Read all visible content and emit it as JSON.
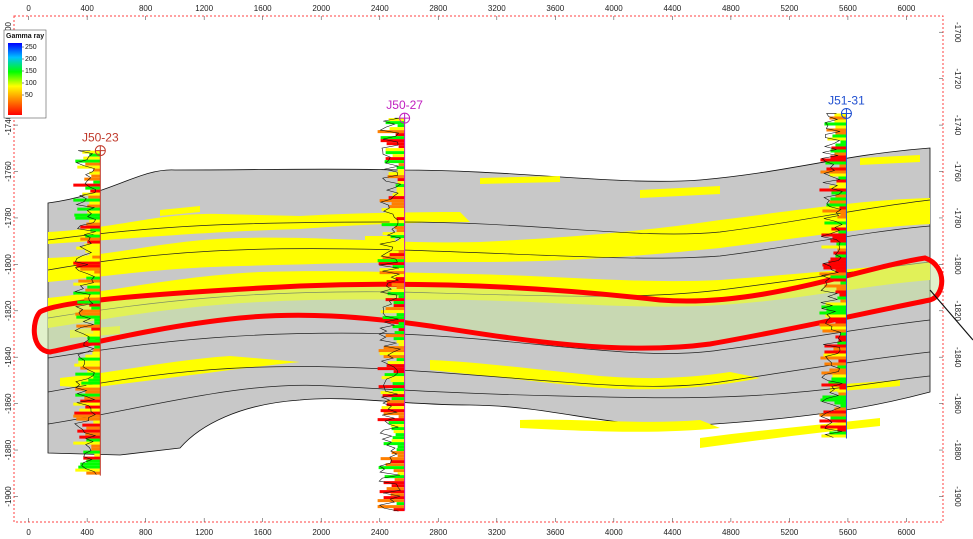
{
  "x_axis": {
    "ticks": [
      "0",
      "400",
      "800",
      "1200",
      "1600",
      "2000",
      "2400",
      "2800",
      "3200",
      "3600",
      "4000",
      "4400",
      "4800",
      "5200",
      "5600",
      "6000"
    ],
    "range": [
      -100,
      6250
    ]
  },
  "y_axis": {
    "ticks": [
      "-1700",
      "-1720",
      "-1740",
      "-1760",
      "-1780",
      "-1800",
      "-1820",
      "-1840",
      "-1860",
      "-1880",
      "-1900"
    ],
    "range": [
      -1693,
      -1911
    ]
  },
  "legend": {
    "title": "Gamma ray",
    "labels": [
      "250",
      "200",
      "150",
      "100",
      "50"
    ],
    "colors": [
      "#0000ff",
      "#00c0ff",
      "#00ff00",
      "#ffff00",
      "#ff8000",
      "#ff0000"
    ]
  },
  "wells": [
    {
      "name": "J50-23",
      "x": 490,
      "top": -1751,
      "bottom": -1891,
      "color": "#c0392b"
    },
    {
      "name": "J50-27",
      "x": 2570,
      "top": -1737,
      "bottom": -1906,
      "color": "#c020c0"
    },
    {
      "name": "J51-31",
      "x": 5590,
      "top": -1735,
      "bottom": -1875,
      "color": "#1f4fd0"
    }
  ],
  "colors": {
    "background": "#c8c8c8",
    "sand": "#ffff00",
    "highlight_outline": "#ff0000",
    "highlight_fill": "#c8e6a0",
    "frame": "#ff3030"
  }
}
